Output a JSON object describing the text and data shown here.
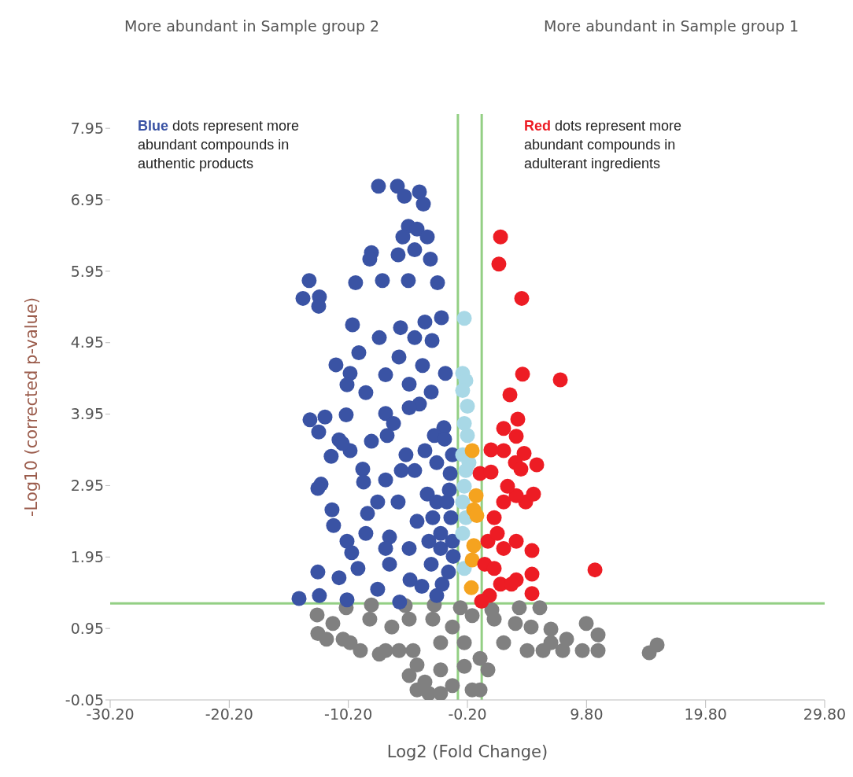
{
  "chart_data": {
    "type": "scatter",
    "xlabel": "Log2 (Fold Change)",
    "ylabel": "-Log10 (corrected p-value)",
    "xlim": [
      -30.2,
      29.8
    ],
    "ylim": [
      -0.05,
      8.15
    ],
    "xticks": [
      {
        "value": -30.2,
        "label": "-30.20"
      },
      {
        "value": -20.2,
        "label": "-20.20"
      },
      {
        "value": -10.2,
        "label": "-10.20"
      },
      {
        "value": -0.2,
        "label": "-0.20"
      },
      {
        "value": 9.8,
        "label": "9.80"
      },
      {
        "value": 19.8,
        "label": "19.80"
      },
      {
        "value": 29.8,
        "label": "29.80"
      }
    ],
    "yticks": [
      -0.05,
      0.95,
      1.95,
      2.95,
      3.95,
      4.95,
      5.95,
      6.95,
      7.95
    ],
    "grid": false,
    "legend": false,
    "marker": "circle",
    "annotations": [
      "More abundant in Sample group 2",
      "More abundant in Sample group 1",
      "Blue dots represent more abundant compounds in authentic products",
      "Red dots represent more abundant compounds in adulterant ingredients"
    ],
    "ref_lines": [
      {
        "axis": "x",
        "value": -1,
        "color": "#93cf84"
      },
      {
        "axis": "x",
        "value": 1,
        "color": "#93cf84"
      },
      {
        "axis": "y",
        "value": 1.3,
        "color": "#93cf84"
      }
    ],
    "series": [
      {
        "color": "#808080",
        "x": [
          -12.82,
          -10.38,
          -8.26,
          -5.42,
          -2.98,
          -0.79,
          1.85,
          4.16,
          5.88,
          -12.76,
          -11.5,
          -10.05,
          -8.4,
          -6.55,
          -5.09,
          -3.11,
          -1.46,
          0.2,
          2.05,
          3.83,
          5.15,
          6.81,
          9.78,
          10.77,
          8.13,
          -12.03,
          -10.64,
          -9.19,
          -7.07,
          -4.76,
          -2.45,
          -0.46,
          2.84,
          4.82,
          6.15,
          7.8,
          9.45,
          10.77,
          -7.6,
          -5.95,
          -4.43,
          -2.45,
          -0.46,
          1.52,
          -5.09,
          -3.77,
          0.2,
          -4.43,
          -2.45,
          0.86,
          15.07,
          15.73,
          -1.46,
          -3.44,
          6.81,
          0.86
        ],
        "values": [
          1.14,
          1.24,
          1.28,
          1.27,
          1.28,
          1.24,
          1.21,
          1.24,
          1.24,
          0.88,
          1.02,
          0.75,
          1.08,
          0.97,
          1.08,
          1.08,
          0.97,
          1.13,
          1.08,
          1.02,
          0.97,
          0.94,
          1.02,
          0.86,
          0.8,
          0.8,
          0.8,
          0.64,
          0.64,
          0.64,
          0.75,
          0.75,
          0.75,
          0.64,
          0.64,
          0.64,
          0.64,
          0.64,
          0.59,
          0.64,
          0.44,
          0.37,
          0.42,
          0.37,
          0.29,
          0.2,
          0.09,
          0.09,
          0.04,
          0.09,
          0.61,
          0.72,
          0.15,
          0.04,
          0.75,
          0.53
        ]
      },
      {
        "color": "#3a53a4",
        "x": [
          -7.67,
          -6.08,
          -4.23,
          -5.49,
          -3.9,
          -5.16,
          -4.43,
          -5.62,
          -3.57,
          -4.63,
          -8.26,
          -6.02,
          -3.31,
          -8.4,
          -13.49,
          -9.59,
          -7.34,
          -5.16,
          -2.71,
          -14.01,
          -12.63,
          -12.69,
          -9.85,
          -5.82,
          -3.77,
          -2.38,
          -7.6,
          -4.63,
          -3.17,
          -11.24,
          -9.32,
          -5.95,
          -3.97,
          -2.05,
          -10.05,
          -10.31,
          -8.73,
          -7.07,
          -5.09,
          -3.24,
          -13.42,
          -12.16,
          -12.69,
          -10.38,
          -7.07,
          -4.23,
          -2.18,
          -10.98,
          -8.26,
          -6.94,
          -5.36,
          -10.05,
          -11.64,
          -8.99,
          -7.07,
          -4.63,
          -2.78,
          -1.65,
          -12.49,
          -12.76,
          -11.57,
          -11.44,
          -8.92,
          -8.59,
          -6.02,
          -3.57,
          -1.72,
          -10.31,
          -9.92,
          -8.73,
          -6.74,
          -4.43,
          -2.45,
          -1.59,
          -9.39,
          -6.74,
          -5.02,
          -3.24,
          -1.39,
          -10.98,
          -12.76,
          -14.34,
          -12.63,
          -10.31,
          -7.74,
          -5.89,
          -4.03,
          -2.32,
          -10.71,
          -6.41,
          -5.09,
          -2.98,
          -3.77,
          -5.75,
          -7.74,
          -2.78,
          -5.09,
          -7.07,
          -2.45,
          -2.12,
          -1.46,
          -1.92,
          -1.46,
          -3.44,
          -3.11,
          -1.79,
          -2.78
        ],
        "values": [
          7.14,
          7.14,
          7.06,
          7.0,
          6.89,
          6.58,
          6.54,
          6.43,
          6.43,
          6.25,
          6.21,
          6.18,
          6.12,
          6.12,
          5.82,
          5.79,
          5.82,
          5.82,
          5.79,
          5.57,
          5.59,
          5.46,
          5.2,
          5.16,
          5.24,
          5.3,
          5.02,
          5.02,
          4.98,
          4.64,
          4.81,
          4.75,
          4.63,
          4.52,
          4.52,
          4.36,
          4.25,
          4.5,
          4.37,
          4.26,
          3.87,
          3.91,
          3.7,
          3.94,
          3.96,
          4.09,
          3.76,
          3.59,
          3.57,
          3.65,
          3.38,
          3.44,
          3.36,
          3.18,
          3.03,
          3.16,
          3.27,
          3.12,
          2.97,
          2.91,
          2.61,
          2.39,
          3.0,
          2.56,
          2.72,
          2.83,
          2.89,
          2.17,
          2.01,
          2.28,
          2.23,
          2.45,
          2.28,
          2.5,
          1.79,
          1.85,
          1.63,
          1.85,
          1.96,
          1.66,
          1.74,
          1.37,
          1.41,
          1.35,
          1.5,
          1.32,
          1.54,
          1.57,
          3.54,
          3.82,
          4.04,
          3.65,
          3.44,
          3.16,
          2.72,
          2.72,
          2.07,
          2.07,
          2.07,
          3.6,
          3.38,
          2.72,
          2.17,
          2.17,
          2.5,
          1.74,
          1.41
        ]
      },
      {
        "color": "#a8d8e6",
        "x": [
          -0.46,
          -0.6,
          -0.33,
          -0.6,
          -0.2,
          -0.46,
          -0.2,
          -0.6,
          -0.07,
          -0.46,
          -0.33,
          -0.6,
          -0.46,
          -0.33,
          -0.6
        ],
        "values": [
          5.29,
          4.52,
          4.42,
          4.28,
          4.06,
          3.82,
          3.65,
          3.38,
          3.27,
          2.94,
          2.5,
          2.28,
          1.79,
          3.16,
          2.72
        ]
      },
      {
        "color": "#f5a31f",
        "x": [
          0.2,
          0.53,
          0.33,
          0.59,
          0.33,
          0.2,
          0.13
        ],
        "values": [
          3.44,
          2.81,
          2.61,
          2.53,
          2.11,
          1.91,
          1.52
        ]
      },
      {
        "color": "#ed1c24",
        "x": [
          2.58,
          2.44,
          4.36,
          4.43,
          7.6,
          3.37,
          4.03,
          2.84,
          3.9,
          2.84,
          1.78,
          4.56,
          3.83,
          5.62,
          0.86,
          1.78,
          4.29,
          4.69,
          3.9,
          5.35,
          2.84,
          2.05,
          1.52,
          2.84,
          3.9,
          5.22,
          1.25,
          2.05,
          2.58,
          3.9,
          5.22,
          10.51,
          1.65,
          3.5,
          5.22,
          0.99,
          3.17,
          2.31
        ],
        "values": [
          6.43,
          6.05,
          5.57,
          4.51,
          4.43,
          4.22,
          3.88,
          3.75,
          3.64,
          3.44,
          3.45,
          3.4,
          3.27,
          3.24,
          3.12,
          3.14,
          3.18,
          2.72,
          2.81,
          2.83,
          2.72,
          2.5,
          2.17,
          2.07,
          2.17,
          2.04,
          1.85,
          1.79,
          1.57,
          1.63,
          1.71,
          1.77,
          1.41,
          1.57,
          1.44,
          1.33,
          2.94,
          2.28
        ]
      }
    ]
  }
}
